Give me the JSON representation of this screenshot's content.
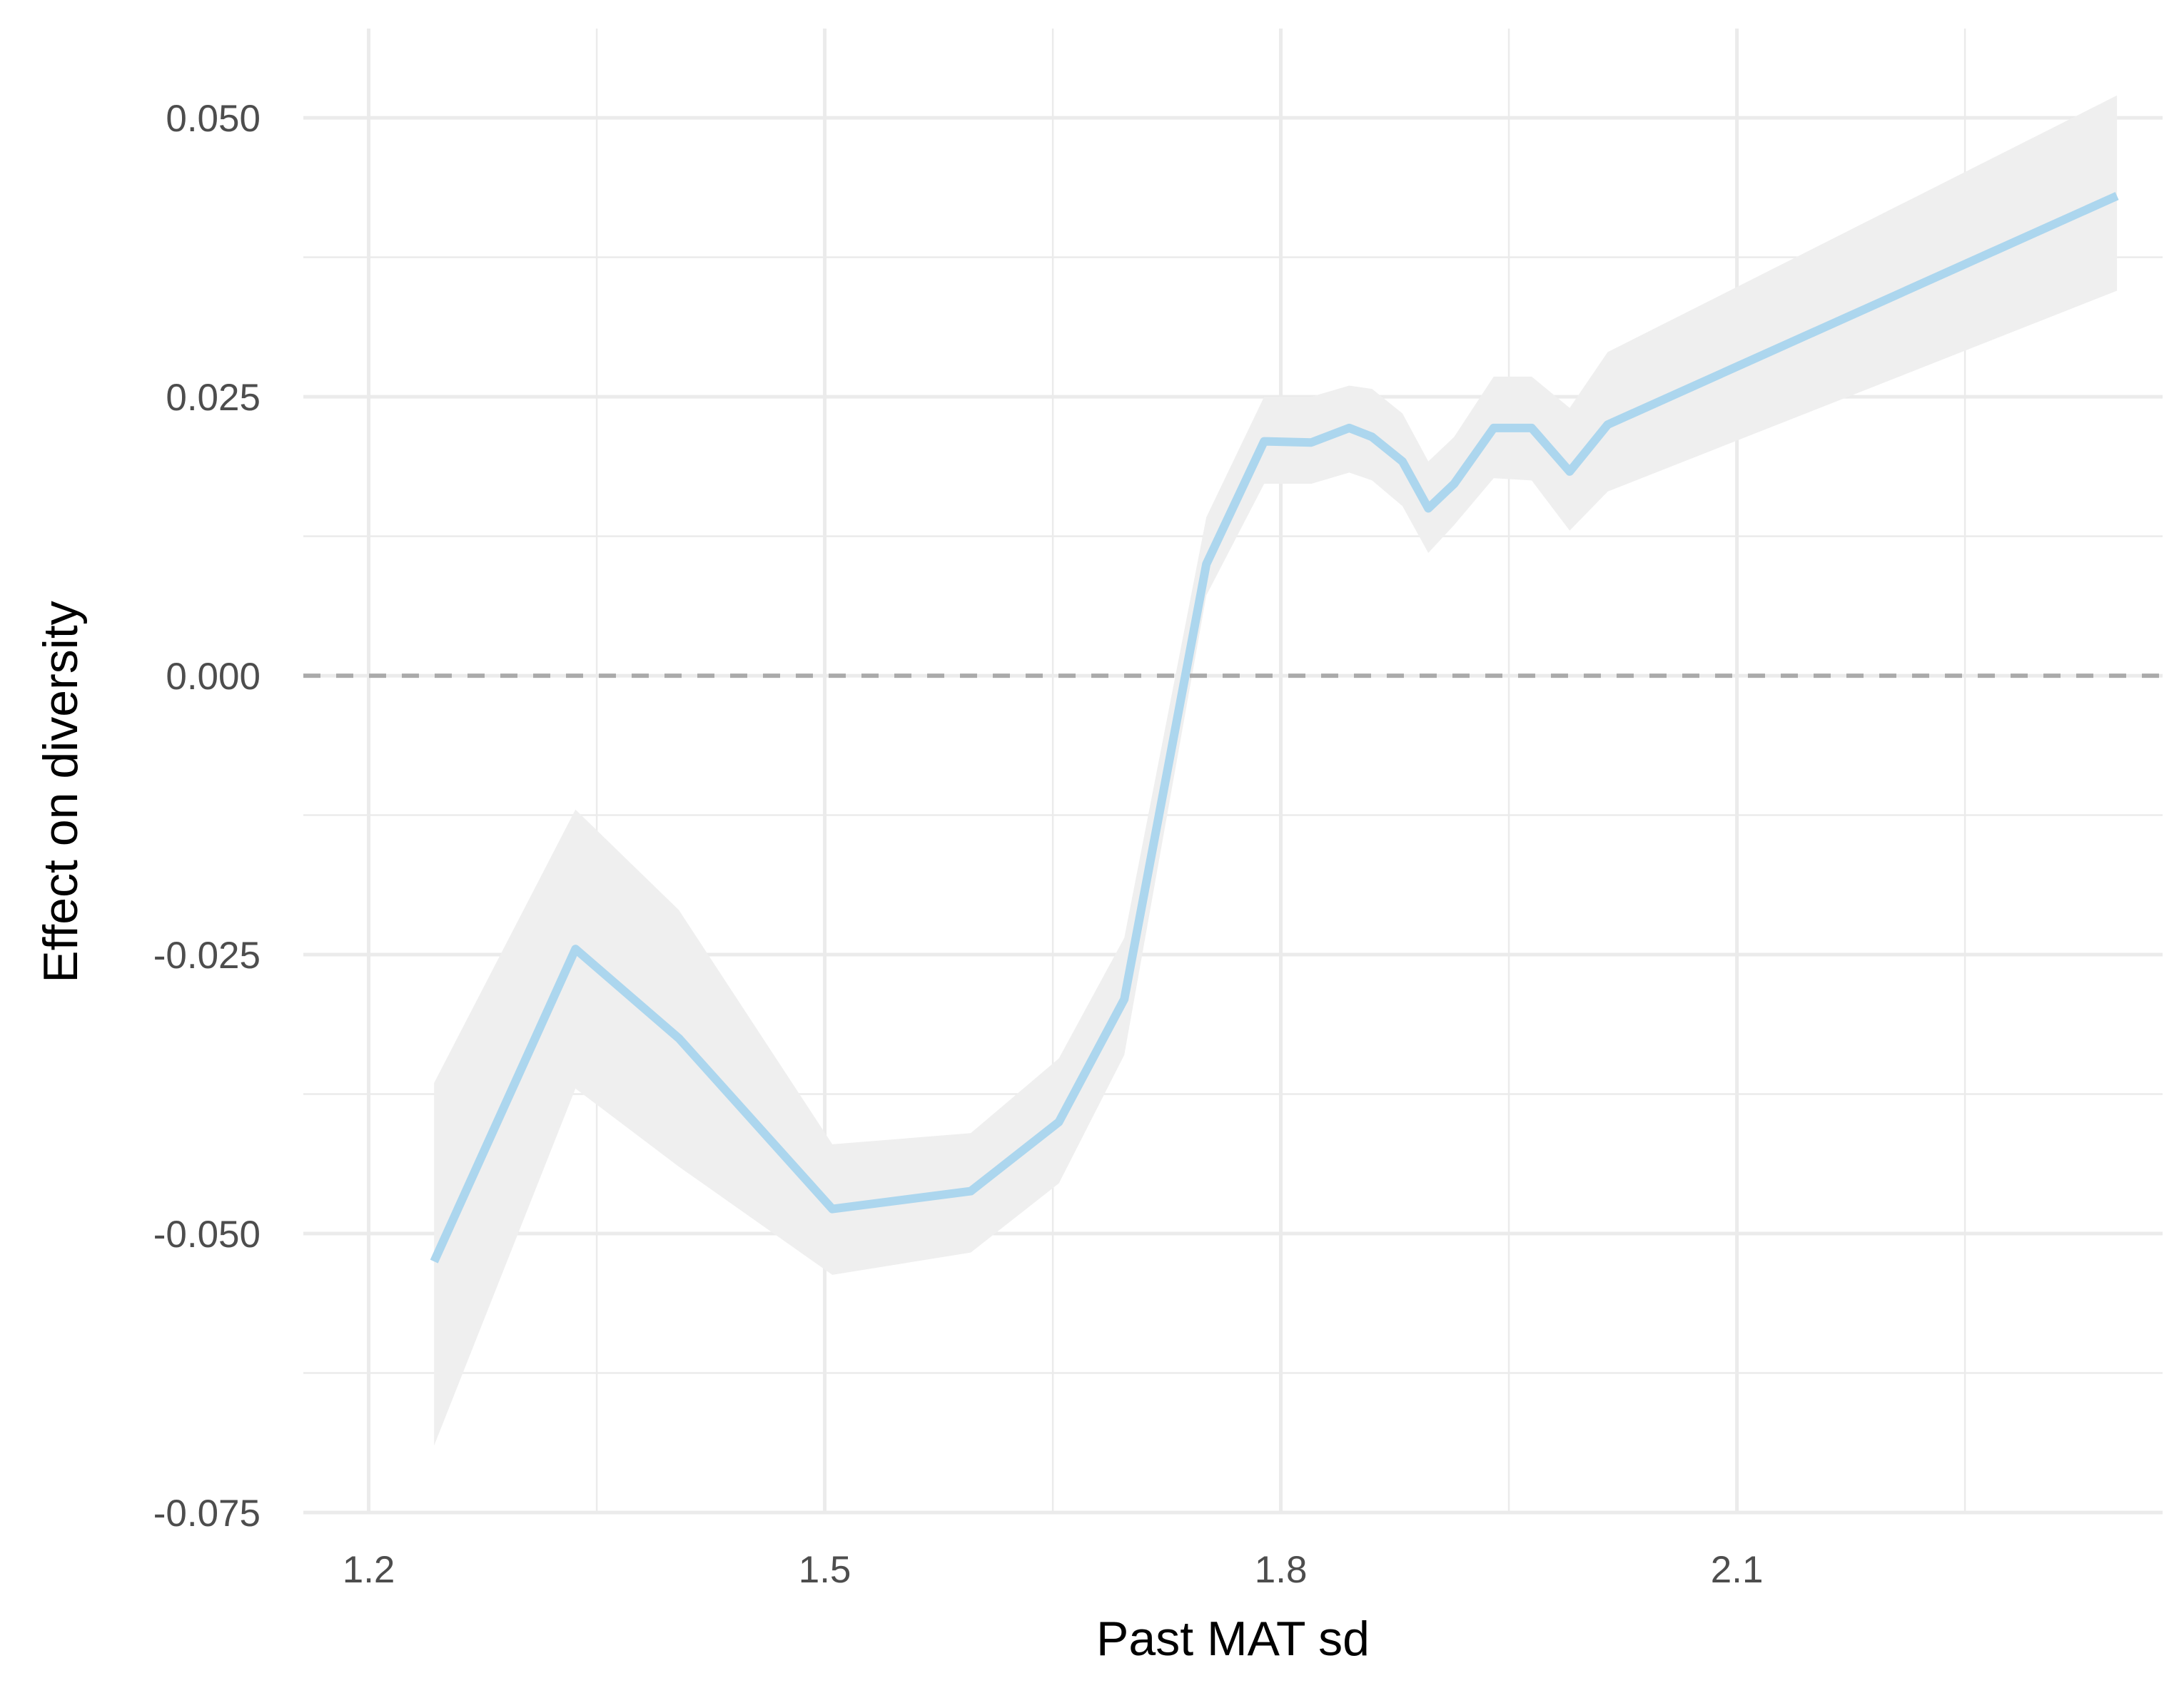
{
  "chart_data": {
    "type": "line",
    "title": "",
    "xlabel": "Past MAT sd",
    "ylabel": "Effect on diversity",
    "xlim": [
      1.157,
      2.38
    ],
    "ylim": [
      -0.075,
      0.058
    ],
    "x_ticks": [
      1.2,
      1.5,
      1.8,
      2.1
    ],
    "x_tick_labels": [
      "1.2",
      "1.5",
      "1.8",
      "2.1"
    ],
    "y_ticks": [
      -0.075,
      -0.05,
      -0.025,
      0.0,
      0.025,
      0.05
    ],
    "y_tick_labels": [
      "-0.075",
      "-0.050",
      "-0.025",
      "0.000",
      "0.025",
      "0.050"
    ],
    "grid": true,
    "reference_line": {
      "y": 0.0,
      "style": "dashed",
      "color": "#aaaaaa"
    },
    "series": [
      {
        "color": "#acd6ee",
        "band_color": "#efefef",
        "x": [
          1.243,
          1.336,
          1.404,
          1.505,
          1.596,
          1.654,
          1.697,
          1.751,
          1.789,
          1.82,
          1.845,
          1.86,
          1.88,
          1.897,
          1.914,
          1.94,
          1.965,
          1.99,
          2.015,
          2.35
        ],
        "y": [
          -0.0525,
          -0.0245,
          -0.0325,
          -0.0478,
          -0.0462,
          -0.04,
          -0.029,
          0.01,
          0.021,
          0.0209,
          0.0222,
          0.0214,
          0.0192,
          0.015,
          0.0172,
          0.0222,
          0.0222,
          0.0183,
          0.0225,
          0.043
        ],
        "lower": [
          -0.069,
          -0.037,
          -0.044,
          -0.0537,
          -0.0517,
          -0.0455,
          -0.034,
          0.0072,
          0.0172,
          0.0172,
          0.0182,
          0.0175,
          0.0152,
          0.011,
          0.0135,
          0.0177,
          0.0175,
          0.013,
          0.0165,
          0.0345
        ],
        "upper": [
          -0.0365,
          -0.012,
          -0.021,
          -0.042,
          -0.041,
          -0.0343,
          -0.0235,
          0.0142,
          0.025,
          0.025,
          0.026,
          0.0257,
          0.0235,
          0.0192,
          0.0214,
          0.0268,
          0.0268,
          0.024,
          0.029,
          0.052
        ]
      }
    ]
  }
}
